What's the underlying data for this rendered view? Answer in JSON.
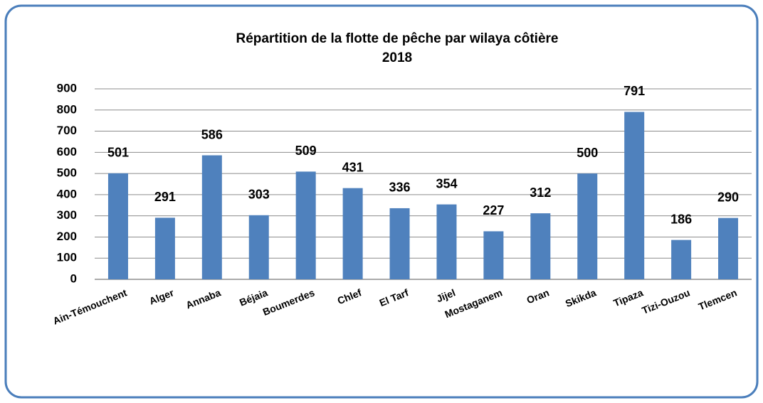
{
  "chart_data": {
    "type": "bar",
    "title": "Répartition de la  flotte de pêche par wilaya côtière",
    "subtitle": "2018",
    "categories": [
      "Ain-Témouchent",
      "Alger",
      "Annaba",
      "Béjaia",
      "Boumerdes",
      "Chlef",
      "El Tarf",
      "Jijel",
      "Mostaganem",
      "Oran",
      "Skikda",
      "Tipaza",
      "Tizi-Ouzou",
      "Tlemcen"
    ],
    "values": [
      501,
      291,
      586,
      303,
      509,
      431,
      336,
      354,
      227,
      312,
      500,
      791,
      186,
      290
    ],
    "color": "#4f81bd",
    "ylim": [
      0,
      900
    ],
    "yticks": [
      0,
      100,
      200,
      300,
      400,
      500,
      600,
      700,
      800,
      900
    ],
    "grid": true
  }
}
